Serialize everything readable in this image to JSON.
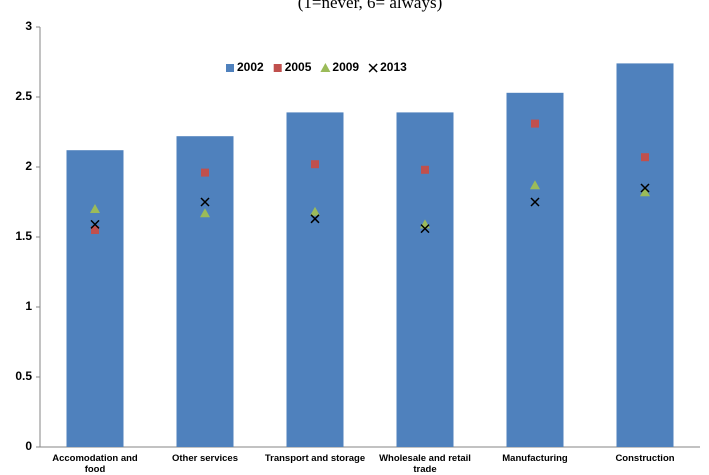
{
  "chart_data": {
    "type": "bar",
    "subtitle": "(1=never, 6= always)",
    "categories": [
      "Accomodation and food",
      "Other services",
      "Transport and storage",
      "Wholesale and retail trade",
      "Manufacturing",
      "Construction"
    ],
    "series": [
      {
        "name": "2002",
        "type": "bar",
        "marker": "square",
        "color": "#4f81bd",
        "values": [
          2.12,
          2.22,
          2.39,
          2.39,
          2.53,
          2.74
        ]
      },
      {
        "name": "2005",
        "type": "scatter",
        "marker": "square",
        "color": "#c0504d",
        "values": [
          1.55,
          1.96,
          2.02,
          1.98,
          2.31,
          2.07
        ]
      },
      {
        "name": "2009",
        "type": "scatter",
        "marker": "triangle",
        "color": "#9bbb59",
        "values": [
          1.7,
          1.67,
          1.68,
          1.59,
          1.87,
          1.82
        ]
      },
      {
        "name": "2013",
        "type": "scatter",
        "marker": "x",
        "color": "#000000",
        "values": [
          1.59,
          1.75,
          1.63,
          1.56,
          1.75,
          1.85
        ]
      }
    ],
    "ylim": [
      0,
      3
    ],
    "yticks": [
      0,
      0.5,
      1,
      1.5,
      2,
      2.5,
      3
    ],
    "grid": false,
    "legend": "top"
  }
}
